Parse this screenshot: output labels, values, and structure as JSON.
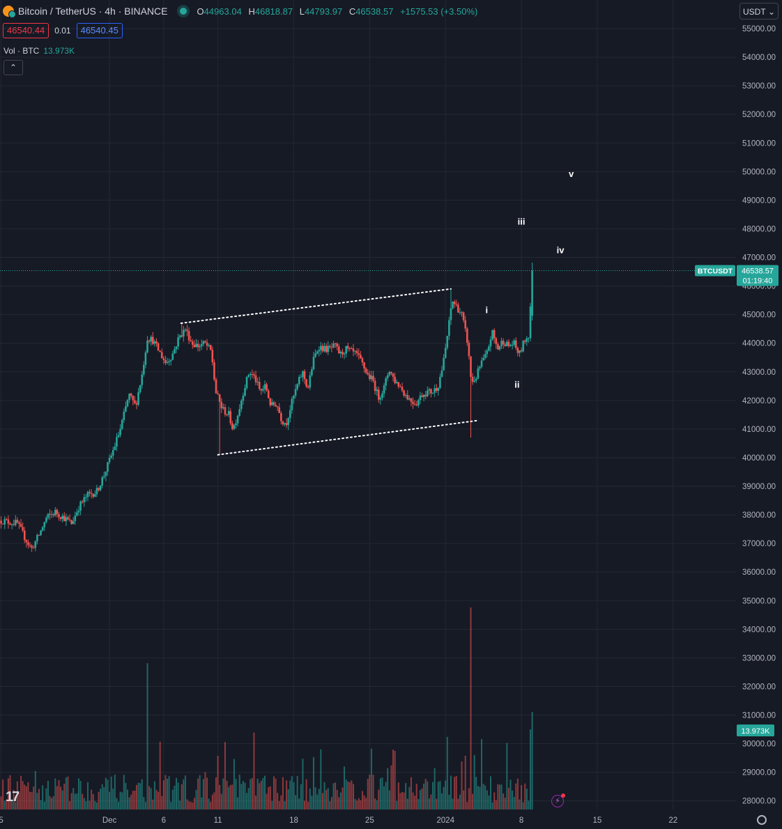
{
  "header": {
    "symbol": "Bitcoin / TetherUS · 4h · BINANCE",
    "o_label": "O",
    "o": "44963.04",
    "h_label": "H",
    "h": "46818.87",
    "l_label": "L",
    "l": "44793.97",
    "c_label": "C",
    "c": "46538.57",
    "change": "+1575.53 (+3.50%)"
  },
  "trade": {
    "sell": "46540.44",
    "spread": "0.01",
    "buy": "46540.45"
  },
  "volume_legend": {
    "label": "Vol · BTC",
    "value": "13.973K"
  },
  "currency": "USDT",
  "collapse_icon": "chevron-up-icon",
  "chart_data": {
    "type": "candlestick",
    "title": "",
    "interval": "4h",
    "y_axis": {
      "ticks": [
        28000,
        29000,
        30000,
        31000,
        32000,
        33000,
        34000,
        35000,
        36000,
        37000,
        38000,
        39000,
        40000,
        41000,
        42000,
        43000,
        44000,
        45000,
        46000,
        47000,
        48000,
        49000,
        50000,
        51000,
        52000,
        53000,
        54000,
        55000
      ],
      "tick_labels": [
        "28000.00",
        "29000.00",
        "30000.00",
        "31000.00",
        "32000.00",
        "33000.00",
        "34000.00",
        "35000.00",
        "36000.00",
        "37000.00",
        "38000.00",
        "39000.00",
        "40000.00",
        "41000.00",
        "42000.00",
        "43000.00",
        "44000.00",
        "45000.00",
        "46000.00",
        "47000.00",
        "48000.00",
        "49000.00",
        "50000.00",
        "51000.00",
        "52000.00",
        "53000.00",
        "54000.00",
        "55000.00"
      ],
      "ylim": [
        27700,
        56000
      ]
    },
    "x_axis": {
      "tick_labels": [
        "5",
        "Dec",
        "6",
        "11",
        "18",
        "25",
        "2024",
        "8",
        "15",
        "22"
      ],
      "tick_days": [
        -26,
        -16,
        -11,
        -6,
        1,
        8,
        15,
        22,
        29,
        36
      ],
      "xlim": [
        -26.1,
        41.8
      ]
    },
    "price_path": [
      [
        -26.0,
        37800
      ],
      [
        -24.5,
        37700
      ],
      [
        -23.8,
        37200
      ],
      [
        -23.2,
        36800
      ],
      [
        -22.5,
        37300
      ],
      [
        -21.8,
        37900
      ],
      [
        -21.0,
        38100
      ],
      [
        -20.2,
        37900
      ],
      [
        -19.5,
        37700
      ],
      [
        -18.8,
        38300
      ],
      [
        -18.0,
        38700
      ],
      [
        -17.2,
        38800
      ],
      [
        -16.5,
        39400
      ],
      [
        -15.8,
        40100
      ],
      [
        -15.0,
        41000
      ],
      [
        -14.2,
        42200
      ],
      [
        -13.6,
        41800
      ],
      [
        -13.0,
        42900
      ],
      [
        -12.5,
        44200
      ],
      [
        -12.0,
        44100
      ],
      [
        -11.4,
        43700
      ],
      [
        -10.8,
        43300
      ],
      [
        -10.2,
        43600
      ],
      [
        -9.6,
        44200
      ],
      [
        -9.0,
        44500
      ],
      [
        -8.4,
        44000
      ],
      [
        -7.8,
        43900
      ],
      [
        -7.2,
        44000
      ],
      [
        -6.6,
        43700
      ],
      [
        -6.2,
        42300
      ],
      [
        -5.6,
        41700
      ],
      [
        -5.0,
        41500
      ],
      [
        -4.6,
        41000
      ],
      [
        -4.1,
        41600
      ],
      [
        -3.6,
        42400
      ],
      [
        -3.1,
        43000
      ],
      [
        -2.6,
        42800
      ],
      [
        -2.1,
        42300
      ],
      [
        -1.6,
        42500
      ],
      [
        -1.1,
        41800
      ],
      [
        -0.6,
        41900
      ],
      [
        -0.1,
        41300
      ],
      [
        0.3,
        41200
      ],
      [
        0.8,
        41900
      ],
      [
        1.3,
        42500
      ],
      [
        1.8,
        43000
      ],
      [
        2.3,
        42400
      ],
      [
        2.8,
        43400
      ],
      [
        3.3,
        43900
      ],
      [
        3.8,
        43800
      ],
      [
        4.3,
        43800
      ],
      [
        4.8,
        43900
      ],
      [
        5.3,
        43600
      ],
      [
        5.8,
        43800
      ],
      [
        6.3,
        43700
      ],
      [
        6.8,
        43600
      ],
      [
        7.3,
        43300
      ],
      [
        7.8,
        42900
      ],
      [
        8.3,
        42700
      ],
      [
        8.8,
        42100
      ],
      [
        9.3,
        42400
      ],
      [
        9.8,
        43100
      ],
      [
        10.3,
        42700
      ],
      [
        10.8,
        42500
      ],
      [
        11.3,
        42200
      ],
      [
        11.8,
        42000
      ],
      [
        12.3,
        41900
      ],
      [
        12.8,
        42200
      ],
      [
        13.3,
        42300
      ],
      [
        13.8,
        42300
      ],
      [
        14.3,
        42500
      ],
      [
        14.8,
        43300
      ],
      [
        15.3,
        44600
      ],
      [
        15.6,
        45500
      ],
      [
        16.0,
        45300
      ],
      [
        16.5,
        45000
      ],
      [
        17.0,
        44100
      ],
      [
        17.4,
        42600
      ],
      [
        17.8,
        42800
      ],
      [
        18.3,
        43300
      ],
      [
        18.8,
        43600
      ],
      [
        19.3,
        44400
      ],
      [
        19.8,
        43800
      ],
      [
        20.3,
        44100
      ],
      [
        20.8,
        43900
      ],
      [
        21.3,
        44000
      ],
      [
        21.8,
        43600
      ],
      [
        22.3,
        44100
      ],
      [
        22.7,
        44300
      ],
      [
        23.0,
        46538.57
      ]
    ],
    "band_upper": [
      [
        -9.4,
        44700
      ],
      [
        15.5,
        45900
      ]
    ],
    "band_lower": [
      [
        -6.0,
        40100
      ],
      [
        18.0,
        41300
      ]
    ],
    "wave_labels": [
      {
        "text": "i",
        "day": 18.8,
        "price": 45050
      },
      {
        "text": "ii",
        "day": 21.6,
        "price": 42450
      },
      {
        "text": "iii",
        "day": 22.0,
        "price": 48150
      },
      {
        "text": "iv",
        "day": 25.6,
        "price": 47150
      },
      {
        "text": "v",
        "day": 26.6,
        "price": 49820
      }
    ],
    "volume_axis_label": "13.973K",
    "last_price": {
      "symbol": "BTCUSDT",
      "value": "46538.57",
      "countdown": "01:19:40",
      "price": 46538.57
    }
  }
}
